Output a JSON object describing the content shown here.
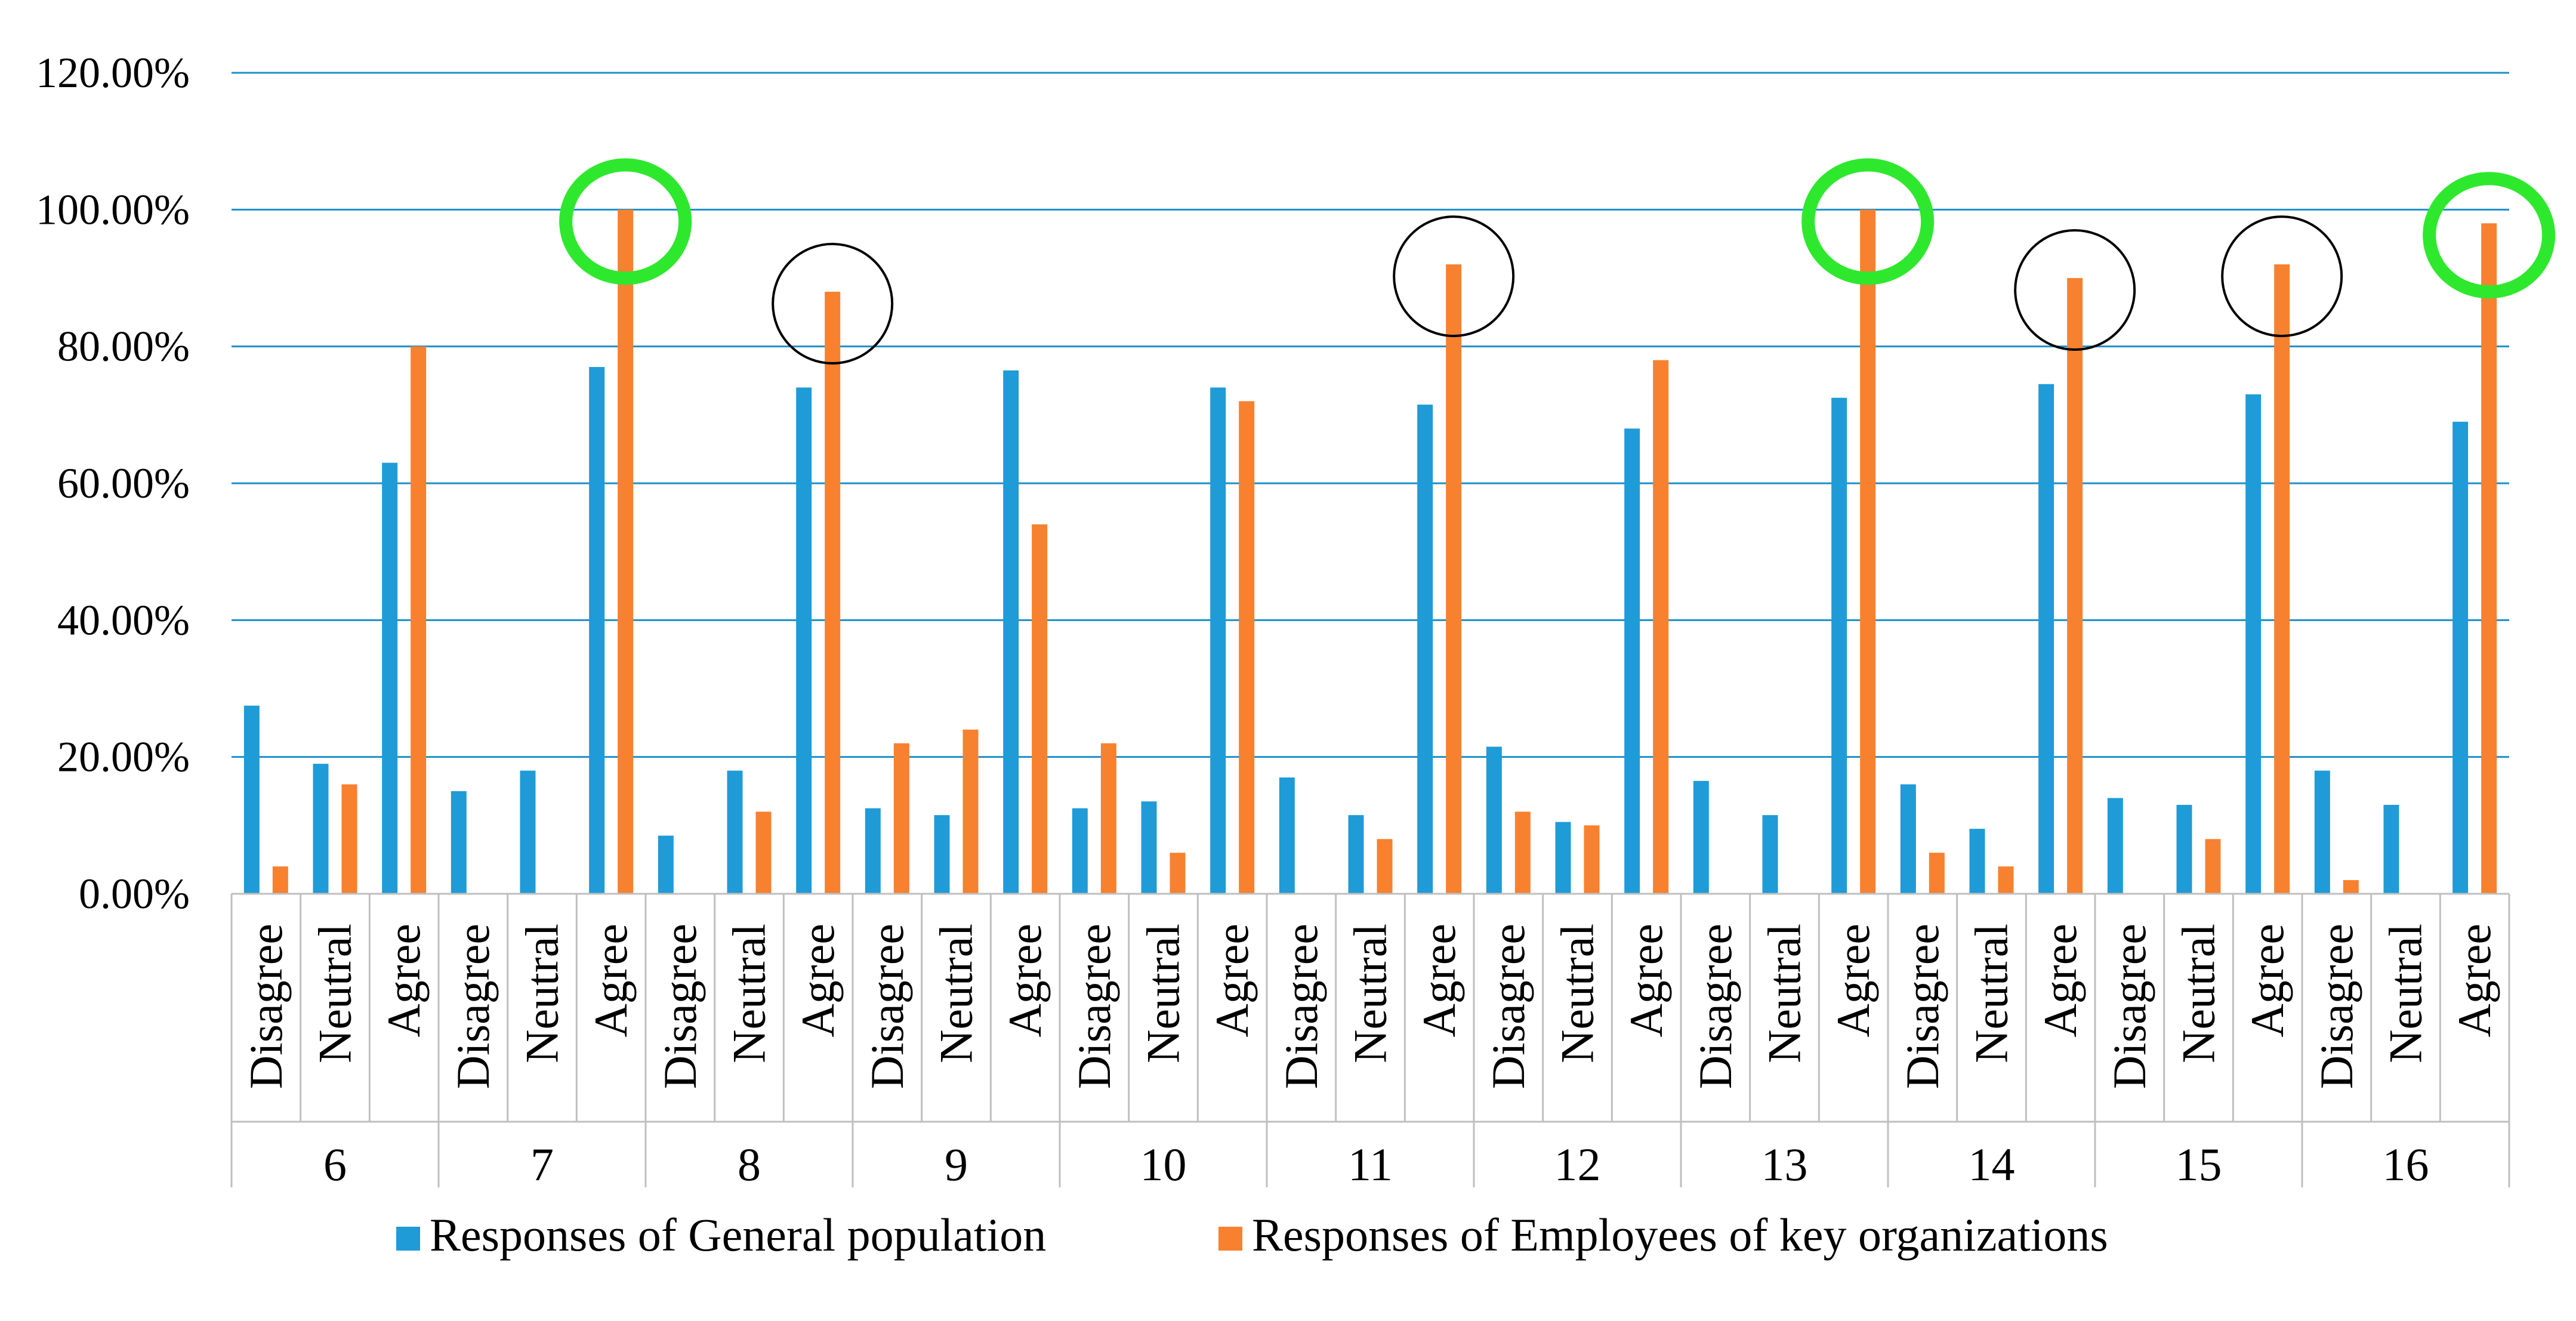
{
  "chart_data": {
    "type": "bar",
    "title": "",
    "xlabel": "",
    "ylabel": "",
    "ylim": [
      0,
      1.2
    ],
    "y_ticks": [
      "0.00%",
      "20.00%",
      "40.00%",
      "60.00%",
      "80.00%",
      "100.00%",
      "120.00%"
    ],
    "y_tick_values": [
      0,
      0.2,
      0.4,
      0.6,
      0.8,
      1.0,
      1.2
    ],
    "grid": true,
    "legend_position": "bottom",
    "groups": [
      "6",
      "7",
      "8",
      "9",
      "10",
      "11",
      "12",
      "13",
      "14",
      "15",
      "16"
    ],
    "sub_categories": [
      "Disagree",
      "Neutral",
      "Agree"
    ],
    "colors": {
      "general": "#1f9bd7",
      "employees": "#f7812f",
      "highlight_green": "#2ee82e",
      "highlight_black": "#000000"
    },
    "series": [
      {
        "name": "Responses of General population",
        "values": [
          0.275,
          0.19,
          0.63,
          0.15,
          0.18,
          0.77,
          0.085,
          0.18,
          0.74,
          0.125,
          0.115,
          0.765,
          0.125,
          0.135,
          0.74,
          0.17,
          0.115,
          0.715,
          0.215,
          0.105,
          0.68,
          0.165,
          0.115,
          0.725,
          0.16,
          0.095,
          0.745,
          0.14,
          0.13,
          0.73,
          0.18,
          0.13,
          0.69
        ]
      },
      {
        "name": "Responses of Employees of key organizations",
        "values": [
          0.04,
          0.16,
          0.8,
          0.0,
          0.0,
          1.0,
          0.0,
          0.12,
          0.88,
          0.22,
          0.24,
          0.54,
          0.22,
          0.06,
          0.72,
          0.0,
          0.08,
          0.92,
          0.12,
          0.1,
          0.78,
          0.0,
          0.0,
          1.0,
          0.06,
          0.04,
          0.9,
          0.0,
          0.08,
          0.92,
          0.02,
          0.0,
          0.98
        ]
      }
    ],
    "annotations": [
      {
        "group": "7",
        "category": "Agree",
        "style": "green-circle"
      },
      {
        "group": "8",
        "category": "Agree",
        "style": "black-circle"
      },
      {
        "group": "11",
        "category": "Agree",
        "style": "black-circle"
      },
      {
        "group": "13",
        "category": "Agree",
        "style": "green-circle"
      },
      {
        "group": "14",
        "category": "Agree",
        "style": "black-circle"
      },
      {
        "group": "15",
        "category": "Agree",
        "style": "black-circle"
      },
      {
        "group": "16",
        "category": "Agree",
        "style": "green-circle"
      }
    ]
  }
}
